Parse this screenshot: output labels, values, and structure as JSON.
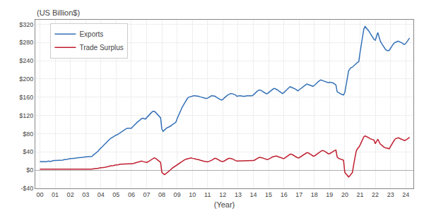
{
  "chart_data": {
    "type": "line",
    "xlabel": "(Year)",
    "ylabel": "(US Billion$)",
    "x": [
      0,
      0.0833,
      0.1667,
      0.25,
      0.3333,
      0.4167,
      0.5,
      0.5833,
      0.6667,
      0.75,
      0.8333,
      0.9167,
      1,
      1.0833,
      1.1667,
      1.25,
      1.3333,
      1.4167,
      1.5,
      1.5833,
      1.6667,
      1.75,
      1.8333,
      1.9167,
      2,
      2.0833,
      2.1667,
      2.25,
      2.3333,
      2.4167,
      2.5,
      2.5833,
      2.6667,
      2.75,
      2.8333,
      2.9167,
      3,
      3.0833,
      3.1667,
      3.25,
      3.3333,
      3.4167,
      3.5,
      3.5833,
      3.6667,
      3.75,
      3.8333,
      3.9167,
      4,
      4.0833,
      4.1667,
      4.25,
      4.3333,
      4.4167,
      4.5,
      4.5833,
      4.6667,
      4.75,
      4.8333,
      4.9167,
      5,
      5.0833,
      5.1667,
      5.25,
      5.3333,
      5.4167,
      5.5,
      5.5833,
      5.6667,
      5.75,
      5.8333,
      5.9167,
      6,
      6.0833,
      6.1667,
      6.25,
      6.3333,
      6.4167,
      6.5,
      6.5833,
      6.6667,
      6.75,
      6.8333,
      6.9167,
      7,
      7.0833,
      7.1667,
      7.25,
      7.3333,
      7.4167,
      7.5,
      7.5833,
      7.6667,
      7.75,
      7.8333,
      7.9167,
      8,
      8.0833,
      8.1667,
      8.25,
      8.3333,
      8.4167,
      8.5,
      8.5833,
      8.6667,
      8.75,
      8.8333,
      8.9167,
      9,
      9.0833,
      9.1667,
      9.25,
      9.3333,
      9.4167,
      9.5,
      9.5833,
      9.6667,
      9.75,
      9.8333,
      9.9167,
      10,
      10.0833,
      10.1667,
      10.25,
      10.3333,
      10.4167,
      10.5,
      10.5833,
      10.6667,
      10.75,
      10.8333,
      10.9167,
      11,
      11.0833,
      11.1667,
      11.25,
      11.3333,
      11.4167,
      11.5,
      11.5833,
      11.6667,
      11.75,
      11.8333,
      11.9167,
      12,
      12.0833,
      12.1667,
      12.25,
      12.3333,
      12.4167,
      12.5,
      12.5833,
      12.6667,
      12.75,
      12.8333,
      12.9167,
      13,
      13.0833,
      13.1667,
      13.25,
      13.3333,
      13.4167,
      13.5,
      13.5833,
      13.6667,
      13.75,
      13.8333,
      13.9167,
      14,
      14.0833,
      14.1667,
      14.25,
      14.3333,
      14.4167,
      14.5,
      14.5833,
      14.6667,
      14.75,
      14.8333,
      14.9167,
      15,
      15.0833,
      15.1667,
      15.25,
      15.3333,
      15.4167,
      15.5,
      15.5833,
      15.6667,
      15.75,
      15.8333,
      15.9167,
      16,
      16.0833,
      16.1667,
      16.25,
      16.3333,
      16.4167,
      16.5,
      16.5833,
      16.6667,
      16.75,
      16.8333,
      16.9167,
      17,
      17.0833,
      17.1667,
      17.25,
      17.3333,
      17.4167,
      17.5,
      17.5833,
      17.6667,
      17.75,
      17.8333,
      17.9167,
      18,
      18.0833,
      18.1667,
      18.25,
      18.3333,
      18.4167,
      18.5,
      18.5833,
      18.6667,
      18.75,
      18.8333,
      18.9167,
      19,
      19.0833,
      19.1667,
      19.25,
      19.3333,
      19.4167,
      19.5,
      19.5833,
      19.6667,
      19.75,
      19.8333,
      19.9167,
      20,
      20.0833,
      20.1667,
      20.25,
      20.3333,
      20.4167,
      20.5,
      20.5833,
      20.6667,
      20.75,
      20.8333,
      20.9167,
      21,
      21.0833,
      21.1667,
      21.25,
      21.3333,
      21.4167,
      21.5,
      21.5833,
      21.6667,
      21.75,
      21.8333,
      21.9167,
      22,
      22.0833,
      22.1667,
      22.25,
      22.3333,
      22.4167,
      22.5,
      22.5833,
      22.6667,
      22.75,
      22.8333,
      22.9167,
      23,
      23.0833,
      23.1667,
      23.25,
      23.3333,
      23.4167,
      23.5,
      23.5833,
      23.6667,
      23.75,
      23.8333,
      23.9167,
      24,
      24.0833,
      24.1667,
      24.25
    ],
    "series": [
      {
        "name": "Exports",
        "color": "#3471b8",
        "values": [
          18,
          19,
          18,
          19,
          18,
          19,
          20,
          20,
          19,
          20,
          20,
          21,
          21,
          21,
          21,
          21,
          22,
          22,
          22,
          23,
          23,
          24,
          24,
          25,
          25,
          25,
          26,
          26,
          26,
          27,
          27,
          27,
          27,
          28,
          28,
          29,
          29,
          29,
          30,
          30,
          30,
          30,
          33,
          35,
          37,
          39,
          42,
          46,
          48,
          51,
          54,
          57,
          60,
          63,
          66,
          68,
          70,
          72,
          74,
          76,
          77,
          78,
          80,
          82,
          83,
          85,
          87,
          89,
          91,
          92,
          92,
          91,
          92,
          95,
          98,
          101,
          104,
          106,
          108,
          111,
          113,
          114,
          113,
          112,
          115,
          118,
          122,
          125,
          127,
          129,
          129,
          127,
          124,
          121,
          118,
          115,
          90,
          85,
          88,
          91,
          93,
          94,
          95,
          97,
          99,
          101,
          103,
          105,
          113,
          120,
          126,
          132,
          138,
          143,
          148,
          153,
          157,
          160,
          161,
          162,
          162,
          163,
          163,
          163,
          163,
          162,
          161,
          160,
          160,
          159,
          158,
          157,
          158,
          160,
          162,
          163,
          163,
          163,
          162,
          160,
          158,
          157,
          155,
          154,
          155,
          158,
          161,
          163,
          165,
          167,
          168,
          168,
          167,
          166,
          165,
          162,
          163,
          163,
          163,
          162,
          162,
          162,
          163,
          163,
          163,
          163,
          163,
          163,
          165,
          168,
          171,
          173,
          175,
          176,
          175,
          173,
          171,
          169,
          168,
          168,
          170,
          172,
          175,
          177,
          179,
          179,
          178,
          176,
          174,
          172,
          170,
          168,
          170,
          173,
          176,
          179,
          181,
          183,
          182,
          181,
          180,
          178,
          176,
          174,
          176,
          178,
          180,
          183,
          185,
          187,
          189,
          188,
          187,
          186,
          185,
          184,
          186,
          188,
          191,
          194,
          196,
          198,
          197,
          196,
          195,
          194,
          193,
          192,
          193,
          193,
          192,
          191,
          189,
          187,
          172,
          170,
          168,
          167,
          166,
          165,
          170,
          185,
          205,
          218,
          222,
          225,
          226,
          229,
          231,
          234,
          236,
          238,
          258,
          278,
          298,
          310,
          315,
          312,
          308,
          305,
          300,
          295,
          292,
          287,
          285,
          295,
          302,
          292,
          283,
          278,
          273,
          268,
          265,
          263,
          262,
          263,
          268,
          273,
          276,
          279,
          281,
          282,
          283,
          282,
          281,
          279,
          277,
          276,
          278,
          282,
          286,
          290
        ]
      },
      {
        "name": "Trade Surplus",
        "color": "#bf1e2e",
        "values": [
          2,
          2,
          1,
          1,
          1,
          1,
          2,
          2,
          2,
          2,
          2,
          2,
          2,
          2,
          1,
          1,
          1,
          1,
          1,
          1,
          2,
          2,
          2,
          2,
          2,
          2,
          2,
          2,
          2,
          2,
          2,
          2,
          2,
          2,
          2,
          2,
          2,
          2,
          2,
          2,
          2,
          2,
          3,
          3,
          4,
          4,
          4,
          5,
          5,
          5,
          6,
          6,
          7,
          7,
          8,
          9,
          9,
          10,
          10,
          11,
          11,
          12,
          12,
          13,
          13,
          14,
          14,
          14,
          14,
          14,
          14,
          13,
          13,
          14,
          15,
          16,
          17,
          18,
          19,
          20,
          20,
          19,
          18,
          17,
          17,
          18,
          20,
          22,
          24,
          26,
          27,
          26,
          24,
          22,
          19,
          17,
          -5,
          -8,
          -10,
          -8,
          -6,
          -4,
          -2,
          1,
          4,
          6,
          8,
          10,
          11,
          13,
          15,
          17,
          19,
          21,
          23,
          24,
          25,
          26,
          27,
          27,
          26,
          26,
          25,
          24,
          24,
          23,
          22,
          21,
          21,
          20,
          19,
          19,
          18,
          19,
          20,
          22,
          23,
          25,
          26,
          25,
          24,
          22,
          20,
          19,
          19,
          20,
          22,
          24,
          25,
          26,
          26,
          25,
          24,
          22,
          21,
          20,
          20,
          20,
          20,
          20,
          20,
          20,
          20,
          20,
          20,
          20,
          20,
          20,
          21,
          22,
          24,
          26,
          27,
          28,
          28,
          27,
          26,
          25,
          24,
          23,
          24,
          25,
          27,
          29,
          30,
          31,
          31,
          30,
          29,
          27,
          26,
          25,
          25,
          27,
          29,
          31,
          33,
          35,
          35,
          34,
          32,
          30,
          28,
          27,
          27,
          29,
          31,
          33,
          35,
          37,
          38,
          38,
          37,
          35,
          33,
          31,
          31,
          33,
          35,
          37,
          40,
          42,
          43,
          43,
          42,
          40,
          38,
          36,
          36,
          38,
          40,
          42,
          43,
          44,
          29,
          26,
          25,
          24,
          23,
          22,
          -5,
          -8,
          -12,
          -15,
          -12,
          -8,
          -5,
          12,
          30,
          42,
          47,
          50,
          55,
          62,
          68,
          73,
          75,
          74,
          72,
          71,
          69,
          68,
          67,
          66,
          58,
          63,
          68,
          62,
          57,
          55,
          52,
          50,
          49,
          48,
          47,
          47,
          52,
          57,
          62,
          66,
          69,
          70,
          71,
          70,
          69,
          68,
          66,
          65,
          66,
          68,
          70,
          72
        ]
      }
    ],
    "xlim": [
      -0.3,
      24.5
    ],
    "xticks": [
      {
        "value": 0,
        "label": "00"
      },
      {
        "value": 1,
        "label": "01"
      },
      {
        "value": 2,
        "label": "02"
      },
      {
        "value": 3,
        "label": "03"
      },
      {
        "value": 4,
        "label": "04"
      },
      {
        "value": 5,
        "label": "05"
      },
      {
        "value": 6,
        "label": "06"
      },
      {
        "value": 7,
        "label": "07"
      },
      {
        "value": 8,
        "label": "08"
      },
      {
        "value": 9,
        "label": "09"
      },
      10,
      11,
      12,
      13,
      14,
      15,
      16,
      17,
      18,
      19,
      20,
      21,
      22,
      23,
      24
    ],
    "ylim": [
      -40,
      330
    ],
    "yticks": [
      {
        "value": -40,
        "label": "-$40"
      },
      {
        "value": 0,
        "label": "$0"
      },
      {
        "value": 40,
        "label": "$40"
      },
      {
        "value": 80,
        "label": "$80"
      },
      {
        "value": 120,
        "label": "$120"
      },
      {
        "value": 160,
        "label": "$160"
      },
      {
        "value": 200,
        "label": "$200"
      },
      {
        "value": 240,
        "label": "$240"
      },
      {
        "value": 280,
        "label": "$280"
      },
      {
        "value": 320,
        "label": "$320"
      }
    ],
    "grid": true,
    "legend": "upper left"
  }
}
